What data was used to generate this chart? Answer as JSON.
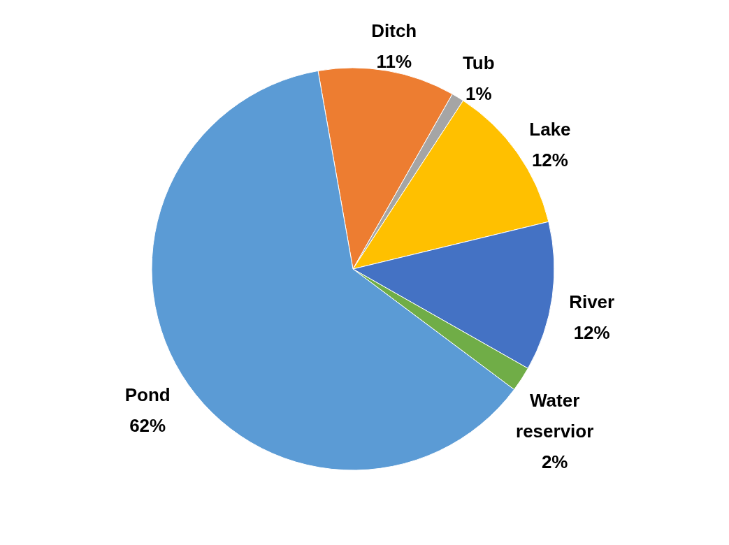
{
  "chart_data": {
    "type": "pie",
    "categories": [
      "Ditch",
      "Tub",
      "Lake",
      "River",
      "Water reservior",
      "Pond"
    ],
    "values": [
      11,
      1,
      12,
      12,
      2,
      62
    ],
    "colors": [
      "#ed7d31",
      "#a5a5a5",
      "#ffc000",
      "#4472c4",
      "#70ad47",
      "#5b9bd5"
    ],
    "value_labels": [
      "11%",
      "1%",
      "12%",
      "12%",
      "2%",
      "62%"
    ],
    "legend": false
  }
}
